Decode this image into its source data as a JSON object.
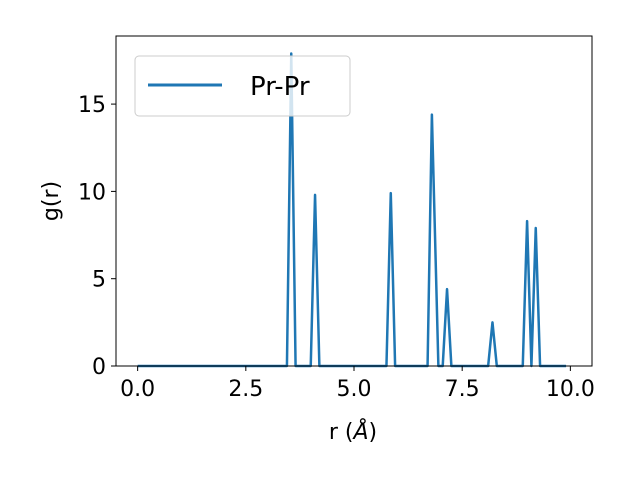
{
  "chart_data": {
    "type": "line",
    "xlabel_base": "r (",
    "xlabel_unit": "Å",
    "xlabel_end": ")",
    "ylabel": "g(r)",
    "xlim": [
      -0.5,
      10.5
    ],
    "ylim": [
      0,
      18.9
    ],
    "xticks": [
      {
        "value": 0.0,
        "label": "0.0"
      },
      {
        "value": 2.5,
        "label": "2.5"
      },
      {
        "value": 5.0,
        "label": "5.0"
      },
      {
        "value": 7.5,
        "label": "7.5"
      },
      {
        "value": 10.0,
        "label": "10.0"
      }
    ],
    "yticks": [
      {
        "value": 0,
        "label": "0"
      },
      {
        "value": 5,
        "label": "5"
      },
      {
        "value": 10,
        "label": "10"
      },
      {
        "value": 15,
        "label": "15"
      }
    ],
    "legend_position": "upper-left",
    "grid": false,
    "series": [
      {
        "name": "Pr-Pr",
        "color": "#1f77b4",
        "points": [
          [
            0.0,
            0
          ],
          [
            3.45,
            0
          ],
          [
            3.55,
            17.9
          ],
          [
            3.65,
            0
          ],
          [
            4.0,
            0
          ],
          [
            4.1,
            9.8
          ],
          [
            4.2,
            0
          ],
          [
            5.75,
            0
          ],
          [
            5.85,
            9.9
          ],
          [
            5.95,
            0
          ],
          [
            6.7,
            0
          ],
          [
            6.8,
            14.4
          ],
          [
            6.95,
            0
          ],
          [
            7.05,
            0
          ],
          [
            7.15,
            4.4
          ],
          [
            7.25,
            0
          ],
          [
            8.1,
            0
          ],
          [
            8.2,
            2.5
          ],
          [
            8.3,
            0
          ],
          [
            8.9,
            0
          ],
          [
            9.0,
            8.3
          ],
          [
            9.1,
            0
          ],
          [
            9.2,
            7.9
          ],
          [
            9.3,
            0
          ],
          [
            9.9,
            0
          ]
        ]
      }
    ]
  }
}
